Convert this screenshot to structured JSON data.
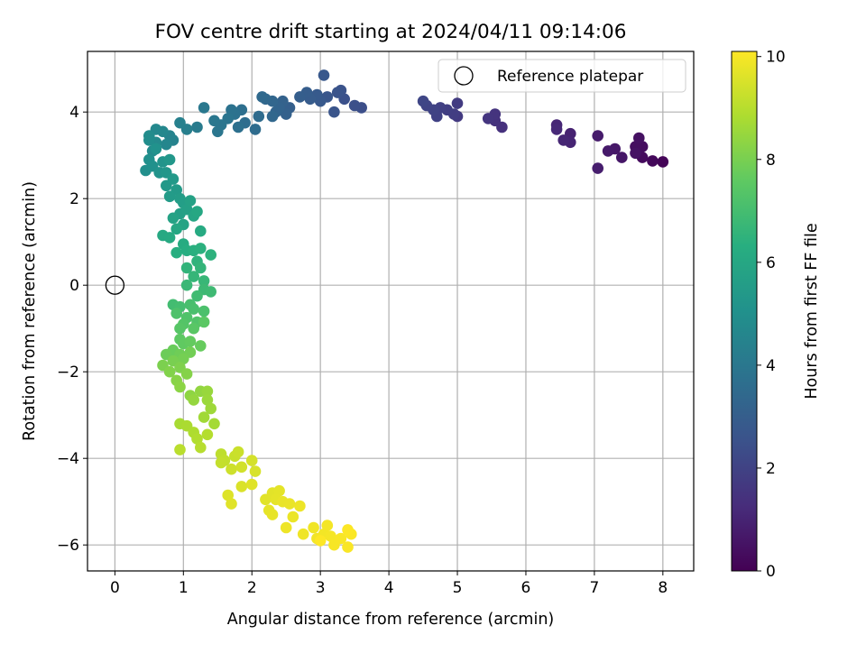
{
  "chart_data": {
    "type": "scatter",
    "title": "FOV centre drift starting at 2024/04/11 09:14:06",
    "xlabel": "Angular distance from reference (arcmin)",
    "ylabel": "Rotation from reference (arcmin)",
    "xlim": [
      -0.4,
      8.45
    ],
    "ylim": [
      -6.6,
      5.4
    ],
    "xticks": [
      "0",
      "1",
      "2",
      "3",
      "4",
      "5",
      "6",
      "7",
      "8"
    ],
    "yticks": [
      "−6",
      "−4",
      "−2",
      "0",
      "2",
      "4"
    ],
    "grid": true,
    "legend": {
      "placement": "top-right",
      "entries": [
        "Reference platepar"
      ]
    },
    "reference_point": {
      "x": 0,
      "y": 0
    },
    "colorbar": {
      "label": "Hours from first FF file",
      "colormap": "viridis",
      "range": [
        0,
        10.1
      ],
      "ticks": [
        "0",
        "2",
        "4",
        "6",
        "8",
        "10"
      ]
    },
    "series": [
      {
        "columns": [
          "x",
          "y",
          "hours"
        ],
        "points": [
          [
            8.0,
            2.85,
            0.1
          ],
          [
            7.85,
            2.87,
            0.2
          ],
          [
            7.7,
            2.95,
            0.3
          ],
          [
            7.7,
            3.2,
            0.35
          ],
          [
            7.6,
            3.2,
            0.4
          ],
          [
            7.65,
            3.4,
            0.45
          ],
          [
            7.6,
            3.05,
            0.5
          ],
          [
            7.4,
            2.95,
            0.6
          ],
          [
            7.3,
            3.15,
            0.65
          ],
          [
            7.2,
            3.1,
            0.7
          ],
          [
            7.05,
            3.45,
            0.75
          ],
          [
            7.05,
            2.7,
            0.8
          ],
          [
            6.65,
            3.5,
            0.95
          ],
          [
            6.65,
            3.3,
            1.0
          ],
          [
            6.55,
            3.35,
            1.05
          ],
          [
            6.45,
            3.7,
            1.1
          ],
          [
            6.45,
            3.6,
            1.15
          ],
          [
            5.65,
            3.65,
            1.4
          ],
          [
            5.55,
            3.8,
            1.45
          ],
          [
            5.55,
            3.95,
            1.5
          ],
          [
            5.45,
            3.85,
            1.55
          ],
          [
            5.0,
            3.9,
            1.7
          ],
          [
            5.0,
            4.2,
            1.75
          ],
          [
            4.95,
            3.95,
            1.8
          ],
          [
            4.85,
            4.05,
            1.85
          ],
          [
            4.75,
            4.1,
            1.9
          ],
          [
            4.7,
            3.9,
            1.95
          ],
          [
            4.65,
            4.05,
            2.0
          ],
          [
            4.55,
            4.15,
            2.05
          ],
          [
            4.5,
            4.25,
            2.1
          ],
          [
            3.6,
            4.1,
            2.4
          ],
          [
            3.5,
            4.15,
            2.45
          ],
          [
            3.35,
            4.3,
            2.5
          ],
          [
            3.3,
            4.5,
            2.55
          ],
          [
            3.25,
            4.45,
            2.6
          ],
          [
            3.2,
            4.0,
            2.65
          ],
          [
            3.1,
            4.35,
            2.7
          ],
          [
            3.05,
            4.85,
            2.75
          ],
          [
            3.0,
            4.25,
            2.8
          ],
          [
            2.95,
            4.4,
            2.85
          ],
          [
            2.85,
            4.3,
            2.9
          ],
          [
            2.8,
            4.45,
            2.95
          ],
          [
            2.7,
            4.35,
            3.0
          ],
          [
            2.55,
            4.1,
            3.05
          ],
          [
            2.5,
            3.95,
            3.1
          ],
          [
            2.45,
            4.25,
            3.15
          ],
          [
            2.4,
            4.1,
            3.2
          ],
          [
            2.35,
            4.0,
            3.25
          ],
          [
            2.3,
            4.25,
            3.3
          ],
          [
            2.3,
            3.9,
            3.35
          ],
          [
            2.2,
            4.3,
            3.4
          ],
          [
            2.15,
            4.35,
            3.45
          ],
          [
            2.1,
            3.9,
            3.5
          ],
          [
            2.05,
            3.6,
            3.55
          ],
          [
            1.9,
            3.75,
            3.6
          ],
          [
            1.85,
            4.05,
            3.65
          ],
          [
            1.8,
            3.65,
            3.7
          ],
          [
            1.75,
            3.95,
            3.75
          ],
          [
            1.7,
            4.05,
            3.8
          ],
          [
            1.65,
            3.85,
            3.85
          ],
          [
            1.55,
            3.7,
            3.9
          ],
          [
            1.5,
            3.55,
            3.95
          ],
          [
            1.45,
            3.8,
            4.0
          ],
          [
            1.3,
            4.1,
            4.05
          ],
          [
            1.2,
            3.65,
            4.15
          ],
          [
            1.05,
            3.6,
            4.3
          ],
          [
            0.95,
            3.75,
            4.35
          ],
          [
            0.85,
            3.35,
            4.45
          ],
          [
            0.8,
            3.45,
            4.5
          ],
          [
            0.75,
            3.25,
            4.6
          ],
          [
            0.7,
            3.55,
            4.65
          ],
          [
            0.6,
            3.6,
            4.7
          ],
          [
            0.6,
            3.3,
            4.75
          ],
          [
            0.55,
            3.1,
            4.8
          ],
          [
            0.5,
            3.45,
            4.85
          ],
          [
            0.5,
            3.35,
            4.9
          ],
          [
            0.45,
            2.65,
            4.95
          ],
          [
            0.5,
            2.9,
            5.0
          ],
          [
            0.55,
            2.75,
            5.05
          ],
          [
            0.6,
            3.15,
            5.1
          ],
          [
            0.65,
            2.6,
            5.15
          ],
          [
            0.7,
            2.85,
            5.2
          ],
          [
            0.75,
            2.6,
            5.25
          ],
          [
            0.8,
            2.9,
            5.3
          ],
          [
            0.75,
            2.3,
            5.35
          ],
          [
            0.85,
            2.45,
            5.4
          ],
          [
            0.9,
            2.2,
            5.45
          ],
          [
            0.8,
            2.05,
            5.5
          ],
          [
            0.95,
            2.0,
            5.55
          ],
          [
            1.0,
            1.9,
            5.6
          ],
          [
            0.95,
            1.65,
            5.65
          ],
          [
            1.05,
            1.75,
            5.7
          ],
          [
            1.1,
            1.95,
            5.75
          ],
          [
            0.85,
            1.55,
            5.8
          ],
          [
            1.0,
            1.4,
            5.85
          ],
          [
            1.15,
            1.6,
            5.9
          ],
          [
            0.9,
            1.3,
            5.95
          ],
          [
            1.2,
            1.7,
            6.0
          ],
          [
            0.7,
            1.15,
            6.05
          ],
          [
            0.8,
            1.1,
            6.1
          ],
          [
            1.25,
            1.25,
            6.15
          ],
          [
            1.0,
            0.95,
            6.2
          ],
          [
            1.05,
            0.8,
            6.25
          ],
          [
            0.9,
            0.75,
            6.3
          ],
          [
            1.15,
            0.8,
            6.35
          ],
          [
            1.25,
            0.85,
            6.4
          ],
          [
            1.4,
            0.7,
            6.45
          ],
          [
            1.2,
            0.55,
            6.5
          ],
          [
            1.05,
            0.4,
            6.55
          ],
          [
            1.25,
            0.4,
            6.6
          ],
          [
            1.15,
            0.2,
            6.65
          ],
          [
            1.3,
            0.1,
            6.7
          ],
          [
            1.05,
            0.0,
            6.75
          ],
          [
            1.3,
            -0.1,
            6.8
          ],
          [
            1.4,
            -0.15,
            6.85
          ],
          [
            1.2,
            -0.25,
            6.9
          ],
          [
            0.85,
            -0.45,
            6.95
          ],
          [
            0.95,
            -0.5,
            7.0
          ],
          [
            1.1,
            -0.45,
            7.05
          ],
          [
            1.15,
            -0.55,
            7.1
          ],
          [
            1.3,
            -0.6,
            7.15
          ],
          [
            0.9,
            -0.65,
            7.2
          ],
          [
            1.05,
            -0.75,
            7.25
          ],
          [
            1.2,
            -0.85,
            7.3
          ],
          [
            1.0,
            -0.9,
            7.35
          ],
          [
            0.95,
            -1.0,
            7.4
          ],
          [
            1.15,
            -1.0,
            7.45
          ],
          [
            1.3,
            -0.85,
            7.5
          ],
          [
            0.95,
            -1.25,
            7.55
          ],
          [
            1.0,
            -1.35,
            7.6
          ],
          [
            1.1,
            -1.3,
            7.65
          ],
          [
            1.25,
            -1.4,
            7.7
          ],
          [
            0.85,
            -1.5,
            7.75
          ],
          [
            0.75,
            -1.6,
            7.8
          ],
          [
            0.95,
            -1.6,
            7.85
          ],
          [
            1.1,
            -1.55,
            7.9
          ],
          [
            1.0,
            -1.7,
            7.95
          ],
          [
            0.85,
            -1.75,
            8.0
          ],
          [
            0.7,
            -1.85,
            8.05
          ],
          [
            0.95,
            -1.9,
            8.1
          ],
          [
            0.8,
            -2.0,
            8.15
          ],
          [
            1.05,
            -2.05,
            8.2
          ],
          [
            0.9,
            -2.2,
            8.25
          ],
          [
            0.95,
            -2.35,
            8.3
          ],
          [
            1.1,
            -2.55,
            8.35
          ],
          [
            1.25,
            -2.45,
            8.4
          ],
          [
            1.15,
            -2.65,
            8.45
          ],
          [
            1.35,
            -2.45,
            8.5
          ],
          [
            1.35,
            -2.65,
            8.55
          ],
          [
            1.4,
            -2.85,
            8.6
          ],
          [
            1.3,
            -3.05,
            8.65
          ],
          [
            1.45,
            -3.2,
            8.7
          ],
          [
            0.95,
            -3.2,
            8.75
          ],
          [
            1.05,
            -3.25,
            8.8
          ],
          [
            1.15,
            -3.4,
            8.85
          ],
          [
            1.2,
            -3.55,
            8.9
          ],
          [
            1.35,
            -3.45,
            8.95
          ],
          [
            1.25,
            -3.75,
            9.0
          ],
          [
            0.95,
            -3.8,
            9.05
          ],
          [
            1.55,
            -3.9,
            9.1
          ],
          [
            1.6,
            -4.05,
            9.15
          ],
          [
            1.55,
            -4.1,
            9.2
          ],
          [
            1.75,
            -3.95,
            9.25
          ],
          [
            1.8,
            -3.85,
            9.3
          ],
          [
            1.7,
            -4.25,
            9.35
          ],
          [
            1.85,
            -4.2,
            9.4
          ],
          [
            2.0,
            -4.05,
            9.45
          ],
          [
            2.05,
            -4.3,
            9.5
          ],
          [
            1.85,
            -4.65,
            9.55
          ],
          [
            1.65,
            -4.85,
            9.6
          ],
          [
            2.0,
            -4.6,
            9.62
          ],
          [
            1.7,
            -5.05,
            9.64
          ],
          [
            2.2,
            -4.95,
            9.66
          ],
          [
            2.3,
            -4.8,
            9.68
          ],
          [
            2.4,
            -4.75,
            9.7
          ],
          [
            2.35,
            -4.95,
            9.72
          ],
          [
            2.25,
            -5.2,
            9.74
          ],
          [
            2.3,
            -5.3,
            9.76
          ],
          [
            2.45,
            -5.0,
            9.78
          ],
          [
            2.55,
            -5.05,
            9.8
          ],
          [
            2.6,
            -5.35,
            9.82
          ],
          [
            2.7,
            -5.1,
            9.84
          ],
          [
            2.5,
            -5.6,
            9.86
          ],
          [
            2.75,
            -5.75,
            9.88
          ],
          [
            2.9,
            -5.6,
            9.9
          ],
          [
            2.95,
            -5.85,
            9.92
          ],
          [
            3.05,
            -5.75,
            9.94
          ],
          [
            3.1,
            -5.55,
            9.96
          ],
          [
            3.15,
            -5.8,
            9.98
          ],
          [
            3.2,
            -6.0,
            10.0
          ],
          [
            3.3,
            -5.85,
            10.02
          ],
          [
            3.4,
            -6.05,
            10.04
          ],
          [
            3.45,
            -5.75,
            10.06
          ],
          [
            3.4,
            -5.65,
            10.08
          ],
          [
            3.0,
            -5.9,
            10.1
          ]
        ]
      }
    ]
  }
}
